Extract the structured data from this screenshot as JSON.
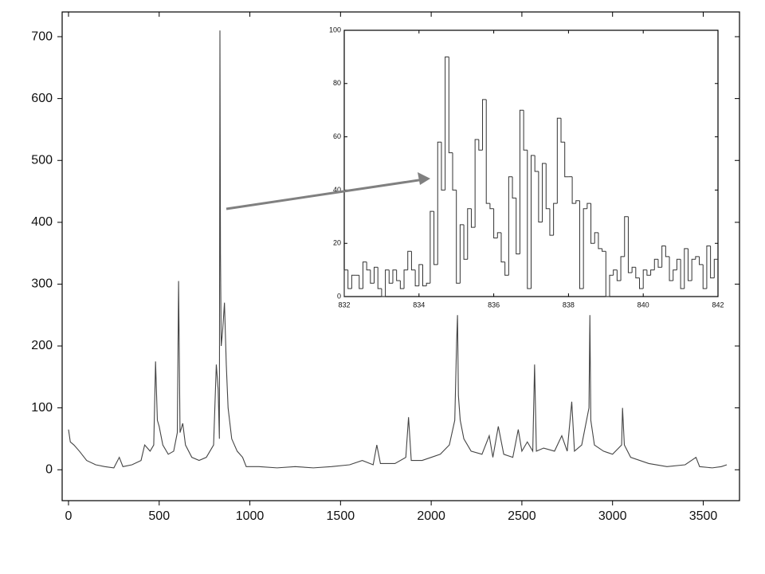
{
  "chart_data": [
    {
      "type": "line",
      "color": "#444444",
      "x": [
        0,
        10,
        30,
        60,
        100,
        150,
        200,
        250,
        280,
        300,
        350,
        400,
        420,
        450,
        470,
        480,
        490,
        500,
        520,
        550,
        580,
        600,
        607,
        615,
        630,
        645,
        680,
        720,
        760,
        800,
        815,
        825,
        832,
        835,
        838,
        842,
        850,
        860,
        870,
        880,
        900,
        930,
        960,
        980,
        1050,
        1150,
        1250,
        1350,
        1450,
        1550,
        1620,
        1680,
        1700,
        1720,
        1800,
        1860,
        1875,
        1890,
        1950,
        2000,
        2050,
        2100,
        2130,
        2140,
        2145,
        2150,
        2160,
        2180,
        2220,
        2280,
        2320,
        2340,
        2370,
        2400,
        2450,
        2480,
        2500,
        2530,
        2560,
        2570,
        2580,
        2620,
        2680,
        2720,
        2750,
        2775,
        2790,
        2830,
        2870,
        2875,
        2880,
        2900,
        2950,
        3000,
        3050,
        3055,
        3065,
        3100,
        3200,
        3300,
        3400,
        3460,
        3480,
        3550,
        3600,
        3630
      ],
      "values": [
        65,
        45,
        40,
        30,
        15,
        8,
        5,
        3,
        20,
        5,
        8,
        15,
        40,
        30,
        40,
        175,
        80,
        70,
        40,
        25,
        30,
        60,
        305,
        60,
        75,
        40,
        20,
        15,
        20,
        40,
        170,
        130,
        50,
        710,
        350,
        200,
        225,
        270,
        170,
        100,
        50,
        30,
        20,
        5,
        5,
        3,
        5,
        3,
        5,
        8,
        15,
        8,
        40,
        10,
        10,
        20,
        85,
        15,
        15,
        20,
        25,
        40,
        80,
        205,
        250,
        120,
        80,
        50,
        30,
        25,
        55,
        20,
        70,
        25,
        20,
        65,
        30,
        45,
        30,
        170,
        30,
        35,
        30,
        55,
        30,
        110,
        30,
        40,
        100,
        250,
        80,
        40,
        30,
        25,
        40,
        100,
        40,
        20,
        10,
        5,
        8,
        20,
        5,
        3,
        5,
        8
      ],
      "xlim": [
        -35,
        3700
      ],
      "ylim": [
        -50,
        740
      ],
      "xticks": [
        0,
        500,
        1000,
        1500,
        2000,
        2500,
        3000,
        3500
      ],
      "yticks": [
        0,
        100,
        200,
        300,
        400,
        500,
        600,
        700
      ]
    },
    {
      "type": "histogram",
      "color": "#333333",
      "bins": [
        832,
        832.1,
        832.2,
        832.3,
        832.4,
        832.5,
        832.6,
        832.7,
        832.8,
        832.9,
        833,
        833.1,
        833.2,
        833.3,
        833.4,
        833.5,
        833.6,
        833.7,
        833.8,
        833.9,
        834,
        834.1,
        834.2,
        834.3,
        834.4,
        834.5,
        834.6,
        834.7,
        834.8,
        834.9,
        835,
        835.1,
        835.2,
        835.3,
        835.4,
        835.5,
        835.6,
        835.7,
        835.8,
        835.9,
        836,
        836.1,
        836.2,
        836.3,
        836.4,
        836.5,
        836.6,
        836.7,
        836.8,
        836.9,
        837,
        837.1,
        837.2,
        837.3,
        837.4,
        837.5,
        837.6,
        837.7,
        837.8,
        837.9,
        838,
        838.1,
        838.2,
        838.3,
        838.4,
        838.5,
        838.6,
        838.7,
        838.8,
        838.9,
        839,
        839.1,
        839.2,
        839.3,
        839.4,
        839.5,
        839.6,
        839.7,
        839.8,
        839.9,
        840,
        840.1,
        840.2,
        840.3,
        840.4,
        840.5,
        840.6,
        840.7,
        840.8,
        840.9,
        841,
        841.1,
        841.2,
        841.3,
        841.4,
        841.5,
        841.6,
        841.7,
        841.8,
        841.9,
        842
      ],
      "values": [
        10,
        3,
        8,
        8,
        3,
        13,
        10,
        5,
        11,
        3,
        0,
        10,
        5,
        10,
        6,
        3,
        10,
        17,
        10,
        4,
        12,
        4,
        5,
        32,
        12,
        58,
        40,
        90,
        54,
        40,
        5,
        27,
        14,
        33,
        26,
        59,
        55,
        74,
        35,
        33,
        22,
        24,
        13,
        8,
        45,
        37,
        16,
        70,
        55,
        3,
        53,
        47,
        28,
        50,
        33,
        23,
        35,
        67,
        58,
        45,
        45,
        35,
        36,
        3,
        33,
        35,
        20,
        24,
        18,
        17,
        0,
        8,
        10,
        6,
        15,
        30,
        9,
        11,
        7,
        3,
        10,
        8,
        10,
        14,
        11,
        19,
        15,
        6,
        10,
        14,
        3,
        18,
        6,
        14,
        15,
        12,
        3,
        19,
        7,
        14
      ],
      "xlim": [
        832,
        842
      ],
      "ylim": [
        0,
        100
      ],
      "xticks": [
        832,
        834,
        836,
        838,
        840,
        842
      ],
      "yticks": [
        0,
        20,
        40,
        60,
        80,
        100
      ]
    }
  ]
}
